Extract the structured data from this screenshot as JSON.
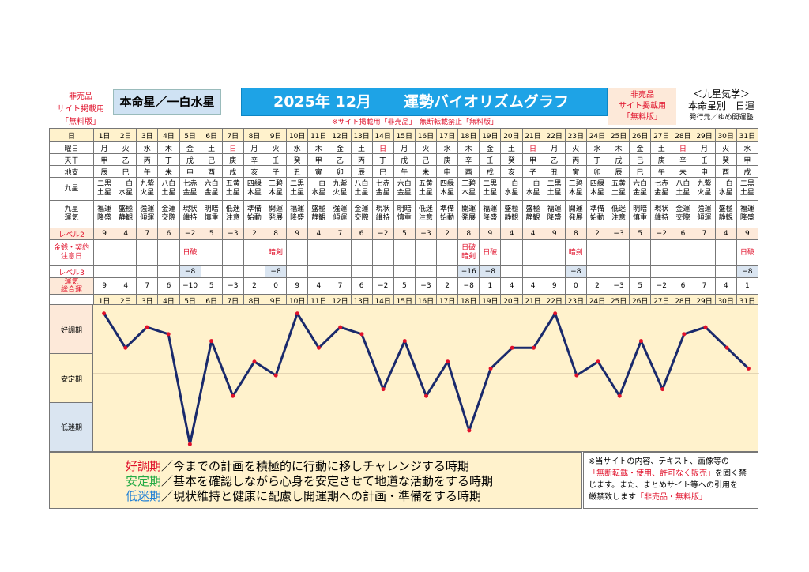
{
  "header": {
    "left_notice": [
      "非売品",
      "サイト掲載用",
      "「無料版」"
    ],
    "natal_star": "本命星／一白水星",
    "title_year": "2025年 12月",
    "title_name": "運勢バイオリズムグラフ",
    "right_notice": [
      "非売品",
      "サイト掲載用",
      "「無料版」"
    ],
    "kyusei_title": "＜九星気学＞",
    "kyusei_sub": "本命星別　日運",
    "publisher": "発行元／ゆめ開運塾",
    "reprint_notice": "※サイト掲載用「非売品」　無断転載禁止「無料版」"
  },
  "row_labels": {
    "day": "日",
    "weekday": "曜日",
    "stem": "天干",
    "branch": "地支",
    "nine_star": "九星",
    "nine_luck": "九星\n運気",
    "level2": "レベル2",
    "caution": "金銭・契約\n注意日",
    "level3": "レベル3",
    "total": "運気\n総合運"
  },
  "days": [
    "1日",
    "2日",
    "3日",
    "4日",
    "5日",
    "6日",
    "7日",
    "8日",
    "9日",
    "10日",
    "11日",
    "12日",
    "13日",
    "14日",
    "15日",
    "16日",
    "17日",
    "18日",
    "19日",
    "20日",
    "21日",
    "22日",
    "23日",
    "24日",
    "25日",
    "26日",
    "27日",
    "28日",
    "29日",
    "30日",
    "31日"
  ],
  "weekdays": [
    "月",
    "火",
    "水",
    "木",
    "金",
    "土",
    "日",
    "月",
    "火",
    "水",
    "木",
    "金",
    "土",
    "日",
    "月",
    "火",
    "水",
    "木",
    "金",
    "土",
    "日",
    "月",
    "火",
    "水",
    "木",
    "金",
    "土",
    "日",
    "月",
    "火",
    "水"
  ],
  "stems": [
    "甲",
    "乙",
    "丙",
    "丁",
    "戊",
    "己",
    "庚",
    "辛",
    "壬",
    "癸",
    "甲",
    "乙",
    "丙",
    "丁",
    "戊",
    "己",
    "庚",
    "辛",
    "壬",
    "癸",
    "甲",
    "乙",
    "丙",
    "丁",
    "戊",
    "己",
    "庚",
    "辛",
    "壬",
    "癸",
    "甲"
  ],
  "branches": [
    "辰",
    "巳",
    "午",
    "未",
    "申",
    "酉",
    "戌",
    "亥",
    "子",
    "丑",
    "寅",
    "卯",
    "辰",
    "巳",
    "午",
    "未",
    "申",
    "酉",
    "戌",
    "亥",
    "子",
    "丑",
    "寅",
    "卯",
    "辰",
    "巳",
    "午",
    "未",
    "申",
    "酉",
    "戌"
  ],
  "nine_stars": [
    "二黒土星",
    "一白水星",
    "九紫火星",
    "八白土星",
    "七赤金星",
    "六白金星",
    "五黄土星",
    "四緑木星",
    "三碧木星",
    "二黒土星",
    "一白水星",
    "九紫火星",
    "八白土星",
    "七赤金星",
    "六白金星",
    "五黄土星",
    "四緑木星",
    "三碧木星",
    "二黒土星",
    "一白水星",
    "一白水星",
    "二黒土星",
    "三碧木星",
    "四緑木星",
    "五黄土星",
    "六白金星",
    "七赤金星",
    "八白土星",
    "九紫火星",
    "一白水星",
    "二黒土星"
  ],
  "nine_luck": [
    "福運隆盛",
    "盛極静観",
    "強運傾運",
    "金運交際",
    "現状維持",
    "明暗慎重",
    "低迷注意",
    "準備始動",
    "開運発展",
    "福運隆盛",
    "盛極静観",
    "強運傾運",
    "金運交際",
    "現状維持",
    "明暗慎重",
    "低迷注意",
    "準備始動",
    "開運発展",
    "福運隆盛",
    "盛極静観",
    "盛極静観",
    "福運隆盛",
    "開運発展",
    "準備始動",
    "低迷注意",
    "明暗慎重",
    "現状維持",
    "金運交際",
    "強運傾運",
    "盛極静観",
    "福運隆盛"
  ],
  "level2": [
    "9",
    "4",
    "7",
    "6",
    "−2",
    "5",
    "−3",
    "2",
    "8",
    "9",
    "4",
    "7",
    "6",
    "−2",
    "5",
    "−3",
    "2",
    "8",
    "9",
    "4",
    "4",
    "9",
    "8",
    "2",
    "−3",
    "5",
    "−2",
    "6",
    "7",
    "4",
    "9"
  ],
  "caution": [
    "",
    "",
    "",
    "",
    "日破",
    "",
    "",
    "",
    "暗剣",
    "",
    "",
    "",
    "",
    "",
    "",
    "",
    "",
    "日破\n暗剣",
    "日破",
    "",
    "",
    "",
    "暗剣",
    "",
    "",
    "",
    "",
    "",
    "",
    "",
    "日破"
  ],
  "level3": [
    "",
    "",
    "",
    "",
    "−8",
    "",
    "",
    "",
    "−8",
    "",
    "",
    "",
    "",
    "",
    "",
    "",
    "",
    "−16",
    "−8",
    "",
    "",
    "",
    "−8",
    "",
    "",
    "",
    "",
    "",
    "",
    "",
    "−8"
  ],
  "total": [
    "9",
    "4",
    "7",
    "6",
    "−10",
    "5",
    "−3",
    "2",
    "0",
    "9",
    "4",
    "7",
    "6",
    "−2",
    "5",
    "−3",
    "2",
    "−8",
    "1",
    "4",
    "4",
    "9",
    "0",
    "2",
    "−3",
    "5",
    "−2",
    "6",
    "7",
    "4",
    "1"
  ],
  "bands": {
    "good": "好調期",
    "stable": "安定期",
    "low": "低迷期"
  },
  "legend": [
    {
      "key": "好調期",
      "text": "／今までの計画を積極的に行動に移しチャレンジする時期",
      "color": "#e0102a"
    },
    {
      "key": "安定期",
      "text": "／基本を確認しながら心身を安定させて地道な活動をする時期",
      "color": "#22aa44"
    },
    {
      "key": "低迷期",
      "text": "／現状維持と健康に配慮し開運期への計画・準備をする時期",
      "color": "#1e7fd6"
    }
  ],
  "copyright": {
    "line1": "※当サイトの内容、テキスト、画像等の",
    "line2": "「無断転載・使用、許可なく販売」",
    "line2b": "を固く禁",
    "line3": "じます。また、まとめサイト等への引用を",
    "line4": "厳禁致します",
    "line4b": "「非売品・無料版」"
  },
  "chart_data": {
    "type": "line",
    "x": [
      1,
      2,
      3,
      4,
      5,
      6,
      7,
      8,
      9,
      10,
      11,
      12,
      13,
      14,
      15,
      16,
      17,
      18,
      19,
      20,
      21,
      22,
      23,
      24,
      25,
      26,
      27,
      28,
      29,
      30,
      31
    ],
    "series": [
      {
        "values": [
          9,
          4,
          7,
          6,
          -10,
          5,
          -3,
          2,
          0,
          9,
          4,
          7,
          6,
          -2,
          5,
          -3,
          2,
          -8,
          1,
          4,
          4,
          9,
          0,
          2,
          -3,
          5,
          -2,
          6,
          7,
          4,
          1
        ]
      }
    ],
    "ylim": [
      -11,
      10
    ],
    "line_color": "#1a2a6c",
    "point_color": "#e0102a"
  }
}
